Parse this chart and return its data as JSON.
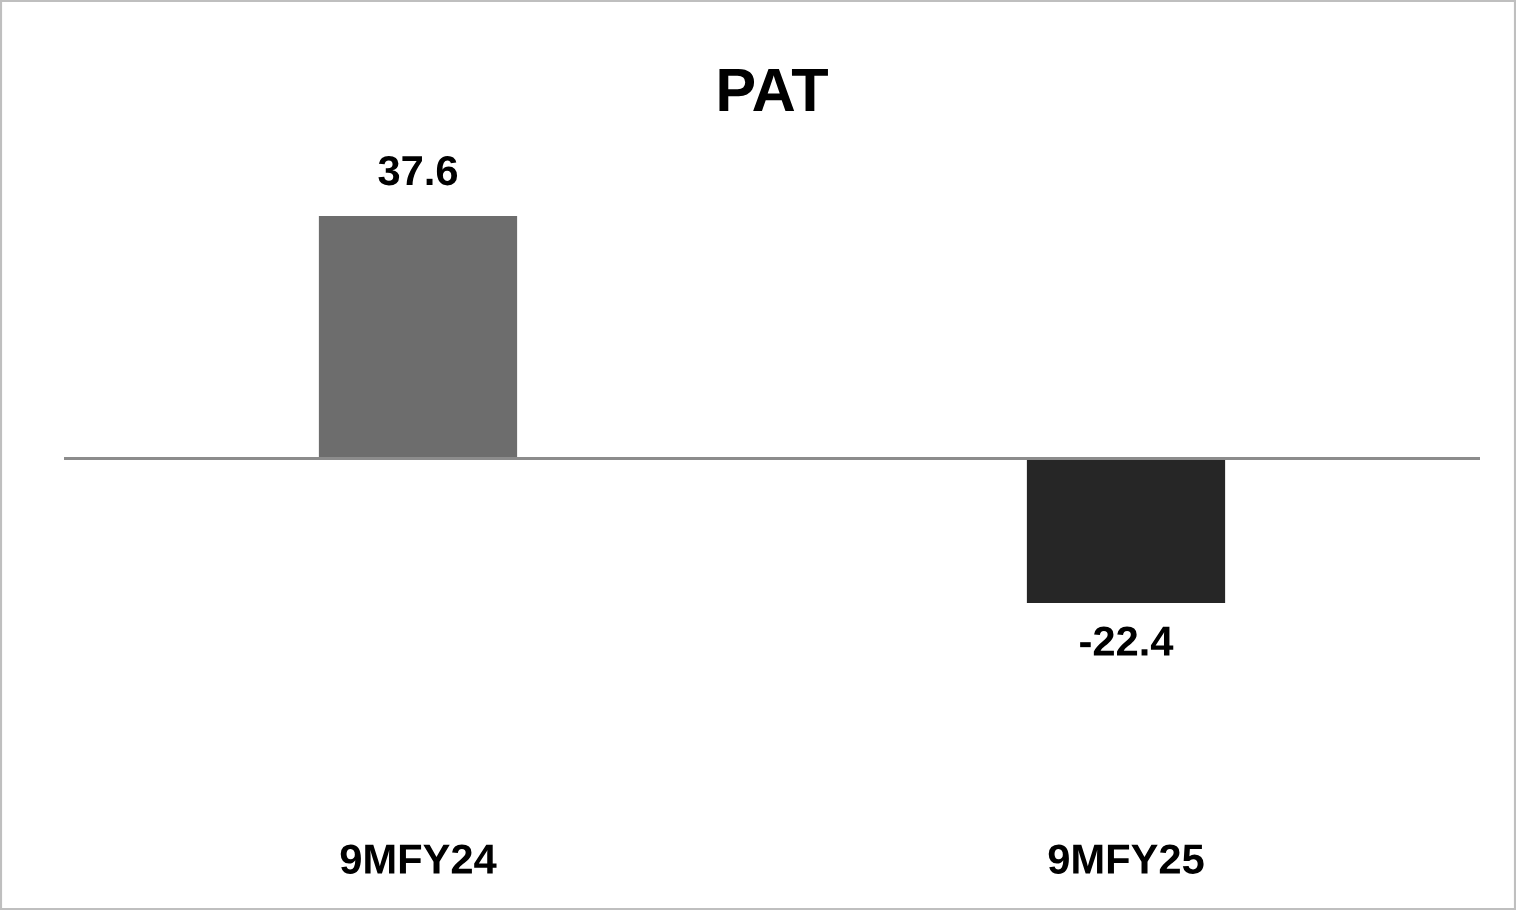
{
  "chart_data": {
    "type": "bar",
    "title": "PAT",
    "categories": [
      "9MFY24",
      "9MFY25"
    ],
    "values": [
      37.6,
      -22.4
    ],
    "colors": [
      "#6d6d6d",
      "#262626"
    ],
    "data_labels": true,
    "grid": false,
    "legend": false
  }
}
